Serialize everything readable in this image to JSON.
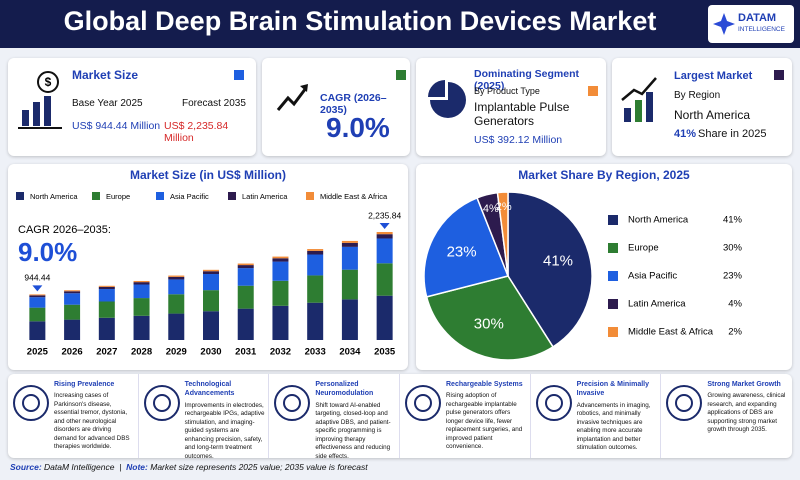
{
  "header": {
    "title": "Global Deep Brain Stimulation Devices Market",
    "logo": [
      "DATAM",
      "INTELLIGENCE"
    ]
  },
  "kpis": {
    "market_size": {
      "title": "Market Size",
      "base_label": "Base Year 2025",
      "forecast_label": "Forecast 2035",
      "base_value": "US$ 944.44 Million",
      "forecast_value": "US$ 2,235.84 Million"
    },
    "cagr": {
      "title": "CAGR (2026–2035)",
      "value": "9.0%"
    },
    "segment": {
      "title": "Dominating Segment (2025)",
      "subtitle": "By Product Type",
      "name": "Implantable Pulse Generators",
      "value": "US$ 392.12 Million"
    },
    "largest": {
      "title": "Largest Market",
      "subtitle": "By Region",
      "name": "North America",
      "share": "41%",
      "share_text": "Share in 2025"
    }
  },
  "chart_data": [
    {
      "type": "stacked_bar",
      "title": "Market Size (in US$ Million)",
      "categories": [
        "2025",
        "2026",
        "2027",
        "2028",
        "2029",
        "2030",
        "2031",
        "2032",
        "2033",
        "2034",
        "2035"
      ],
      "series": [
        {
          "name": "North America",
          "color": "#1b2a6b",
          "values": [
            387,
            422,
            460,
            501,
            547,
            596,
            649,
            708,
            772,
            841,
            917
          ]
        },
        {
          "name": "Europe",
          "color": "#2e7d32",
          "values": [
            283,
            309,
            337,
            367,
            400,
            436,
            475,
            518,
            565,
            615,
            671
          ]
        },
        {
          "name": "Asia Pacific",
          "color": "#1e5fe0",
          "values": [
            217,
            237,
            258,
            281,
            307,
            334,
            364,
            397,
            433,
            472,
            514
          ]
        },
        {
          "name": "Latin America",
          "color": "#2d1b4e",
          "values": [
            38,
            41,
            45,
            49,
            53,
            58,
            63,
            69,
            75,
            82,
            89
          ]
        },
        {
          "name": "Middle East & Africa",
          "color": "#f28c38",
          "values": [
            19,
            21,
            22,
            24,
            27,
            29,
            32,
            35,
            38,
            41,
            45
          ]
        }
      ],
      "totals": [
        944.44,
        null,
        null,
        null,
        null,
        null,
        null,
        null,
        null,
        null,
        2235.84
      ],
      "total_labels": [
        "944.44",
        null,
        null,
        null,
        null,
        null,
        null,
        null,
        null,
        null,
        "2,235.84"
      ],
      "annotations": [
        "CAGR 2026–2035:",
        "9.0%"
      ]
    },
    {
      "type": "pie",
      "title": "Market Share By Region, 2025",
      "categories": [
        "North America",
        "Europe",
        "Asia Pacific",
        "Latin America",
        "Middle East & Africa"
      ],
      "values": [
        41,
        30,
        23,
        4,
        2
      ],
      "value_labels": [
        "41%",
        "30%",
        "23%",
        "4%",
        "2%"
      ],
      "colors": [
        "#1b2a6b",
        "#2e7d32",
        "#1e5fe0",
        "#2d1b4e",
        "#f28c38"
      ]
    }
  ],
  "features": [
    {
      "title": "Rising Prevalence",
      "text": "Increasing cases of Parkinson's disease, essential tremor, dystonia, and other neurological disorders are driving demand for advanced DBS therapies worldwide."
    },
    {
      "title": "Technological Advancements",
      "text": "Improvements in electrodes, rechargeable IPGs, adaptive stimulation, and imaging-guided systems are enhancing precision, safety, and long-term treatment outcomes."
    },
    {
      "title": "Personalized Neuromodulation",
      "text": "Shift toward AI-enabled targeting, closed-loop and adaptive DBS, and patient-specific programming is improving therapy effectiveness and reducing side effects."
    },
    {
      "title": "Rechargeable Systems",
      "text": "Rising adoption of rechargeable implantable pulse generators offers longer device life, fewer replacement surgeries, and improved patient convenience."
    },
    {
      "title": "Precision & Minimally Invasive",
      "text": "Advancements in imaging, robotics, and minimally invasive techniques are enabling more accurate implantation and better stimulation outcomes."
    },
    {
      "title": "Strong Market Growth",
      "text": "Growing awareness, clinical research, and expanding applications of DBS are supporting strong market growth through 2035."
    }
  ],
  "footer": {
    "source_label": "Source:",
    "source": "DataM Intelligence",
    "separator": "|",
    "note_label": "Note:",
    "note": "Market size represents 2025 value; 2035 value is forecast"
  }
}
